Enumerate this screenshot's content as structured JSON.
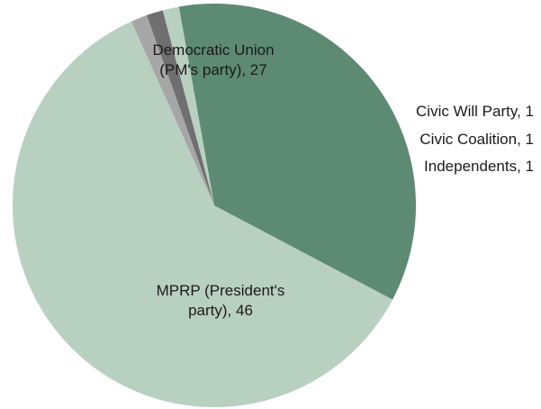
{
  "chart_data": {
    "type": "pie",
    "start_angle_deg": 114.3,
    "direction": "counterclockwise",
    "slices": [
      {
        "name": "MPRP (President's party)",
        "value": 46,
        "label_lines": [
          "MPRP (President's",
          "party), 46"
        ],
        "label_position": "inside",
        "color": "#b8d0c0"
      },
      {
        "name": "Democratic Union (PM's party)",
        "value": 27,
        "label_lines": [
          "Democratic Union",
          "(PM's party), 27"
        ],
        "label_position": "inside",
        "color": "#5d8a72"
      },
      {
        "name": "Civic Will Party",
        "value": 1,
        "label_lines": [
          "Civic Will Party, 1"
        ],
        "label_position": "outside",
        "color": "#b8d0c0"
      },
      {
        "name": "Civic Coalition",
        "value": 1,
        "label_lines": [
          "Civic Coalition, 1"
        ],
        "label_position": "outside",
        "color": "#6f6f6f"
      },
      {
        "name": "Independents",
        "value": 1,
        "label_lines": [
          "Independents, 1"
        ],
        "label_position": "outside",
        "color": "#a6a6a6"
      }
    ]
  }
}
